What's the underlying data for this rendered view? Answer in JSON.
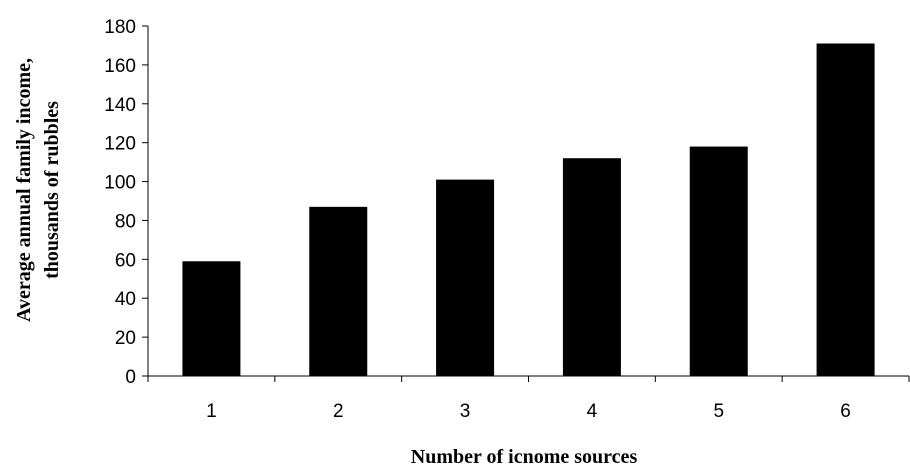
{
  "chart_data": {
    "type": "bar",
    "categories": [
      "1",
      "2",
      "3",
      "4",
      "5",
      "6"
    ],
    "values": [
      59,
      87,
      101,
      112,
      118,
      171
    ],
    "xlabel": "Number of icnome sources",
    "ylabel_lines": [
      "Average annual family income,",
      "thousands of rubbles"
    ],
    "ylim": [
      0,
      180
    ],
    "yticks": [
      0,
      20,
      40,
      60,
      80,
      100,
      120,
      140,
      160,
      180
    ],
    "grid": false,
    "legend": "none",
    "bar_color": "#000000",
    "axis_color": "#000000"
  }
}
